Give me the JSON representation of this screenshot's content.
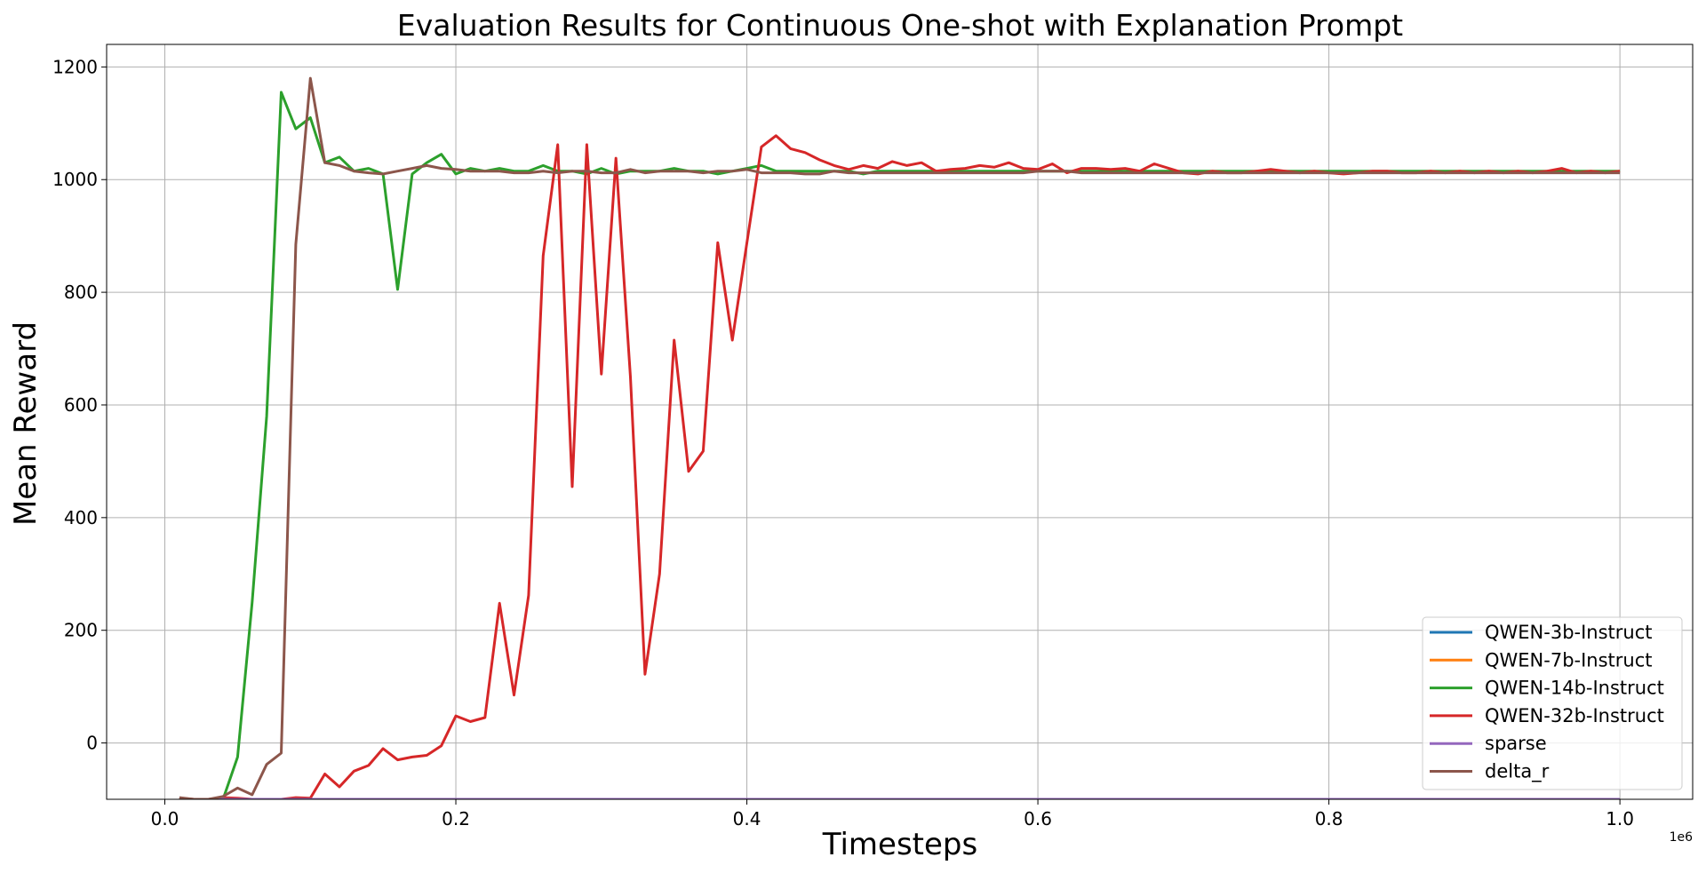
{
  "chart_data": {
    "type": "line",
    "title": "Evaluation Results for Continuous One-shot with Explanation Prompt",
    "xlabel": "Timesteps",
    "ylabel": "Mean Reward",
    "x_offset_label": "1e6",
    "xlim": [
      -0.04,
      1.05
    ],
    "ylim": [
      -100,
      1240
    ],
    "x_ticks": [
      0.0,
      0.2,
      0.4,
      0.6,
      0.8,
      1.0
    ],
    "x_tick_labels": [
      "0.0",
      "0.2",
      "0.4",
      "0.6",
      "0.8",
      "1.0"
    ],
    "y_ticks": [
      0,
      200,
      400,
      600,
      800,
      1000,
      1200
    ],
    "y_tick_labels": [
      "0",
      "200",
      "400",
      "600",
      "800",
      "1000",
      "1200"
    ],
    "grid": true,
    "legend_position": "lower-right",
    "x_step": 0.01,
    "series": [
      {
        "name": "QWEN-3b-Instruct",
        "color": "#1f77b4",
        "values": [
          -100,
          -100,
          -100,
          -100,
          -100,
          -100,
          -100,
          -100,
          -100,
          -100,
          -100,
          -100,
          -100,
          -100,
          -100,
          -100,
          -100,
          -100,
          -100,
          -100,
          -100,
          -100,
          -100,
          -100,
          -100,
          -100,
          -100,
          -100,
          -100,
          -100,
          -100,
          -100,
          -100,
          -100,
          -100,
          -100,
          -100,
          -100,
          -100,
          -100,
          -100,
          -100,
          -100,
          -100,
          -100,
          -100,
          -100,
          -100,
          -100,
          -100,
          -100,
          -100,
          -100,
          -100,
          -100,
          -100,
          -100,
          -100,
          -100,
          -100,
          -100,
          -100,
          -100,
          -100,
          -100,
          -100,
          -100,
          -100,
          -100,
          -100,
          -100,
          -100,
          -100,
          -100,
          -100,
          -100,
          -100,
          -100,
          -100,
          -100,
          -100,
          -100,
          -100,
          -100,
          -100,
          -100,
          -100,
          -100,
          -100,
          -100,
          -100,
          -100,
          -100,
          -100,
          -100,
          -100,
          -100,
          -100,
          -100,
          -100
        ]
      },
      {
        "name": "QWEN-7b-Instruct",
        "color": "#ff7f0e",
        "values": [
          -100,
          -100,
          -100,
          -100,
          -100,
          -100,
          -100,
          -100,
          -100,
          -100,
          -100,
          -100,
          -100,
          -100,
          -100,
          -100,
          -100,
          -100,
          -100,
          -100,
          -100,
          -100,
          -100,
          -100,
          -100,
          -100,
          -100,
          -100,
          -100,
          -100,
          -100,
          -100,
          -100,
          -100,
          -100,
          -100,
          -100,
          -100,
          -100,
          -100,
          -100,
          -100,
          -100,
          -100,
          -100,
          -100,
          -100,
          -100,
          -100,
          -100,
          -100,
          -100,
          -100,
          -100,
          -100,
          -100,
          -100,
          -100,
          -100,
          -100,
          -100,
          -100,
          -100,
          -100,
          -100,
          -100,
          -100,
          -100,
          -100,
          -100,
          -100,
          -100,
          -100,
          -100,
          -100,
          -100,
          -100,
          -100,
          -100,
          -100,
          -100,
          -100,
          -100,
          -100,
          -100,
          -100,
          -100,
          -100,
          -100,
          -100,
          -100,
          -100,
          -100,
          -100,
          -100,
          -100,
          -100,
          -100,
          -100,
          -100
        ]
      },
      {
        "name": "QWEN-14b-Instruct",
        "color": "#2ca02c",
        "values": [
          -100,
          -100,
          -100,
          -100,
          -25,
          250,
          580,
          1155,
          1090,
          1110,
          1030,
          1040,
          1015,
          1020,
          1010,
          805,
          1010,
          1030,
          1045,
          1010,
          1020,
          1015,
          1020,
          1015,
          1015,
          1025,
          1015,
          1015,
          1010,
          1020,
          1010,
          1015,
          1015,
          1015,
          1020,
          1015,
          1015,
          1010,
          1015,
          1020,
          1025,
          1015,
          1015,
          1015,
          1015,
          1015,
          1015,
          1010,
          1015,
          1015,
          1015,
          1015,
          1015,
          1015,
          1015,
          1015,
          1015,
          1015,
          1015,
          1015,
          1015,
          1015,
          1015,
          1015,
          1015,
          1015,
          1015,
          1015,
          1015,
          1015,
          1015,
          1015,
          1015,
          1015,
          1015,
          1015,
          1015,
          1015,
          1015,
          1015,
          1015,
          1015,
          1015,
          1015,
          1015,
          1015,
          1015,
          1015,
          1015,
          1015,
          1015,
          1015,
          1015,
          1015,
          1015,
          1015,
          1015,
          1015,
          1015,
          1015
        ]
      },
      {
        "name": "QWEN-32b-Instruct",
        "color": "#d62728",
        "values": [
          -98,
          -100,
          -100,
          -97,
          -98,
          -100,
          -100,
          -100,
          -97,
          -98,
          -55,
          -78,
          -50,
          -40,
          -10,
          -30,
          -25,
          -22,
          -5,
          48,
          38,
          45,
          248,
          85,
          262,
          865,
          1062,
          455,
          1062,
          655,
          1038,
          650,
          122,
          300,
          715,
          482,
          518,
          888,
          715,
          888,
          1058,
          1078,
          1055,
          1048,
          1035,
          1025,
          1018,
          1025,
          1020,
          1032,
          1025,
          1030,
          1015,
          1018,
          1020,
          1025,
          1022,
          1030,
          1020,
          1018,
          1028,
          1012,
          1020,
          1020,
          1018,
          1020,
          1015,
          1028,
          1020,
          1012,
          1010,
          1015,
          1012,
          1012,
          1015,
          1018,
          1015,
          1012,
          1015,
          1012,
          1010,
          1012,
          1015,
          1015,
          1012,
          1012,
          1015,
          1012,
          1015,
          1012,
          1015,
          1012,
          1015,
          1012,
          1015,
          1020,
          1012,
          1015,
          1012,
          1015
        ]
      },
      {
        "name": "sparse",
        "color": "#9467bd",
        "values": [
          -100,
          -100,
          -100,
          -100,
          -100,
          -100,
          -100,
          -100,
          -100,
          -100,
          -100,
          -100,
          -100,
          -100,
          -100,
          -100,
          -100,
          -100,
          -100,
          -100,
          -100,
          -100,
          -100,
          -100,
          -100,
          -100,
          -100,
          -100,
          -100,
          -100,
          -100,
          -100,
          -100,
          -100,
          -100,
          -100,
          -100,
          -100,
          -100,
          -100,
          -100,
          -100,
          -100,
          -100,
          -100,
          -100,
          -100,
          -100,
          -100,
          -100,
          -100,
          -100,
          -100,
          -100,
          -100,
          -100,
          -100,
          -100,
          -100,
          -100,
          -100,
          -100,
          -100,
          -100,
          -100,
          -100,
          -100,
          -100,
          -100,
          -100,
          -100,
          -100,
          -100,
          -100,
          -100,
          -100,
          -100,
          -100,
          -100,
          -100,
          -100,
          -100,
          -100,
          -100,
          -100,
          -100,
          -100,
          -100,
          -100,
          -100,
          -100,
          -100,
          -100,
          -100,
          -100,
          -100,
          -100,
          -100,
          -100,
          -100
        ]
      },
      {
        "name": "delta_r",
        "color": "#8c564b",
        "values": [
          -97,
          -100,
          -100,
          -95,
          -80,
          -92,
          -38,
          -18,
          885,
          1180,
          1030,
          1025,
          1015,
          1012,
          1010,
          1015,
          1020,
          1025,
          1020,
          1018,
          1015,
          1015,
          1015,
          1012,
          1012,
          1015,
          1012,
          1015,
          1015,
          1012,
          1012,
          1018,
          1012,
          1015,
          1015,
          1015,
          1012,
          1015,
          1015,
          1018,
          1012,
          1012,
          1012,
          1010,
          1010,
          1015,
          1012,
          1012,
          1012,
          1012,
          1012,
          1012,
          1012,
          1012,
          1012,
          1012,
          1012,
          1012,
          1012,
          1015,
          1015,
          1015,
          1012,
          1012,
          1012,
          1012,
          1012,
          1012,
          1012,
          1012,
          1012,
          1012,
          1012,
          1012,
          1012,
          1012,
          1012,
          1012,
          1012,
          1012,
          1012,
          1012,
          1012,
          1012,
          1012,
          1012,
          1012,
          1012,
          1012,
          1012,
          1012,
          1012,
          1012,
          1012,
          1012,
          1012,
          1012,
          1012,
          1012,
          1012
        ]
      }
    ]
  }
}
